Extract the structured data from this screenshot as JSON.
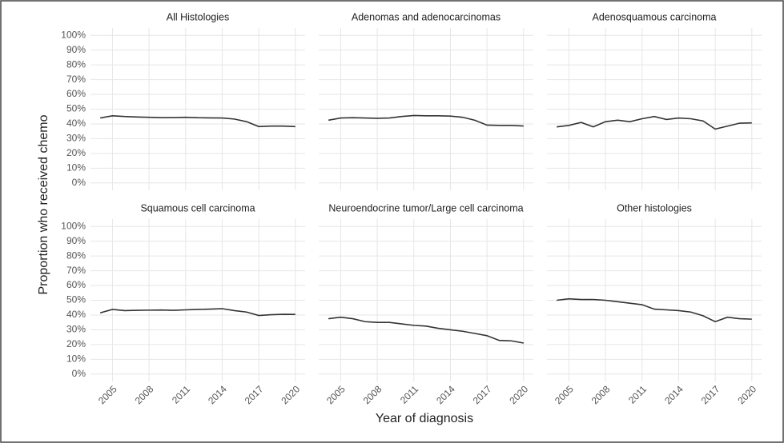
{
  "chart_data": {
    "type": "line",
    "color": "#333333",
    "grid": true,
    "ylabel": "Proportion who received chemo",
    "xlabel": "Year of diagnosis",
    "x": [
      2004,
      2005,
      2006,
      2007,
      2008,
      2009,
      2010,
      2011,
      2012,
      2013,
      2014,
      2015,
      2016,
      2017,
      2018,
      2019,
      2020
    ],
    "xlim": [
      2003.2,
      2020.8
    ],
    "xticks": [
      2005,
      2008,
      2011,
      2014,
      2017,
      2020
    ],
    "ylim": [
      -5,
      105
    ],
    "yticks": [
      {
        "value": 0,
        "label": "0%"
      },
      {
        "value": 10,
        "label": "10%"
      },
      {
        "value": 20,
        "label": "20%"
      },
      {
        "value": 30,
        "label": "30%"
      },
      {
        "value": 40,
        "label": "40%"
      },
      {
        "value": 50,
        "label": "50%"
      },
      {
        "value": 60,
        "label": "60%"
      },
      {
        "value": 70,
        "label": "70%"
      },
      {
        "value": 80,
        "label": "80%"
      },
      {
        "value": 90,
        "label": "90%"
      },
      {
        "value": 100,
        "label": "100%"
      }
    ],
    "facets": [
      {
        "title": "All Histologies",
        "values": [
          44,
          45.5,
          45,
          44.7,
          44.5,
          44.3,
          44.3,
          44.5,
          44.2,
          44.1,
          44,
          43.3,
          41.5,
          38.2,
          38.5,
          38.5,
          38.2
        ]
      },
      {
        "title": "Adenomas and adenocarcinomas",
        "values": [
          42.5,
          44,
          44.2,
          44,
          43.8,
          44,
          45,
          45.7,
          45.5,
          45.5,
          45.3,
          44.5,
          42.5,
          39.2,
          39,
          39,
          38.6
        ]
      },
      {
        "title": "Adenosquamous carcinoma",
        "values": [
          38,
          39,
          41,
          38,
          41.5,
          42.5,
          41.5,
          43.5,
          45,
          43,
          44,
          43.5,
          42,
          36.5,
          38.5,
          40.5,
          40.7
        ]
      },
      {
        "title": "Squamous cell carcinoma",
        "values": [
          41.5,
          43.8,
          43,
          43.2,
          43.3,
          43.4,
          43.2,
          43.5,
          43.8,
          44,
          44.3,
          43,
          42,
          39.7,
          40.2,
          40.5,
          40.4
        ]
      },
      {
        "title": "Neuroendocrine tumor/Large cell carcinoma",
        "values": [
          37.5,
          38.5,
          37.5,
          35.5,
          35,
          35,
          34,
          33,
          32.5,
          31,
          30,
          29,
          27.5,
          26,
          22.8,
          22.5,
          21
        ]
      },
      {
        "title": "Other histologies",
        "values": [
          50,
          51,
          50.5,
          50.5,
          50,
          49,
          48,
          47,
          44,
          43.5,
          43,
          42,
          39.5,
          35.5,
          38.5,
          37.5,
          37.2
        ]
      }
    ]
  }
}
